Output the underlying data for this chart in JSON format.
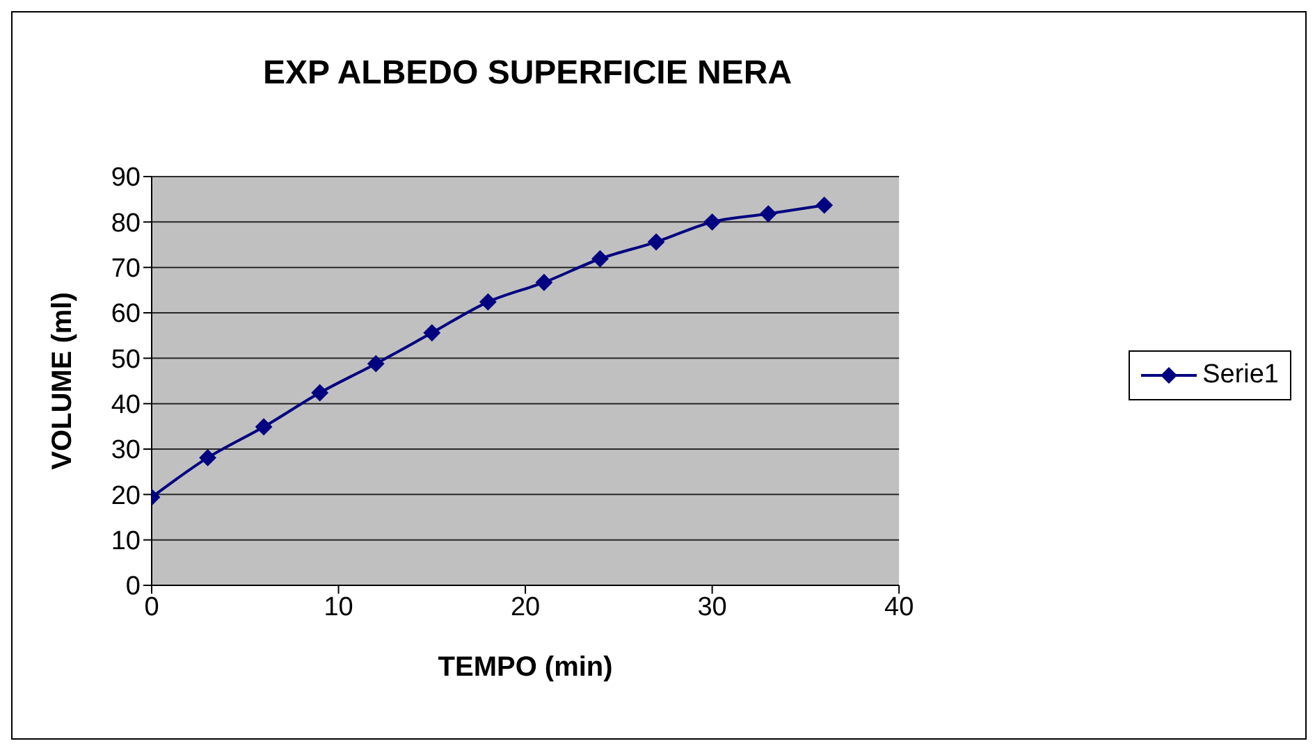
{
  "chart_data": {
    "type": "line",
    "title": "EXP ALBEDO SUPERFICIE NERA",
    "xlabel": "TEMPO (min)",
    "ylabel": "VOLUME (ml)",
    "x": [
      0,
      3,
      6,
      9,
      12,
      15,
      18,
      21,
      24,
      27,
      30,
      33,
      36
    ],
    "series": [
      {
        "name": "Serie1",
        "color": "#000080",
        "values": [
          19.4,
          28.1,
          34.9,
          42.4,
          48.8,
          55.6,
          62.4,
          66.7,
          71.9,
          75.6,
          80,
          81.8,
          83.7
        ]
      }
    ],
    "xlim": [
      0,
      40
    ],
    "xticks": [
      0,
      10,
      20,
      30,
      40
    ],
    "ylim": [
      0,
      90
    ],
    "yticks": [
      0,
      10,
      20,
      30,
      40,
      50,
      60,
      70,
      80,
      90
    ],
    "grid": "y",
    "legend": "right",
    "marker": "diamond",
    "line_style": "solid"
  }
}
